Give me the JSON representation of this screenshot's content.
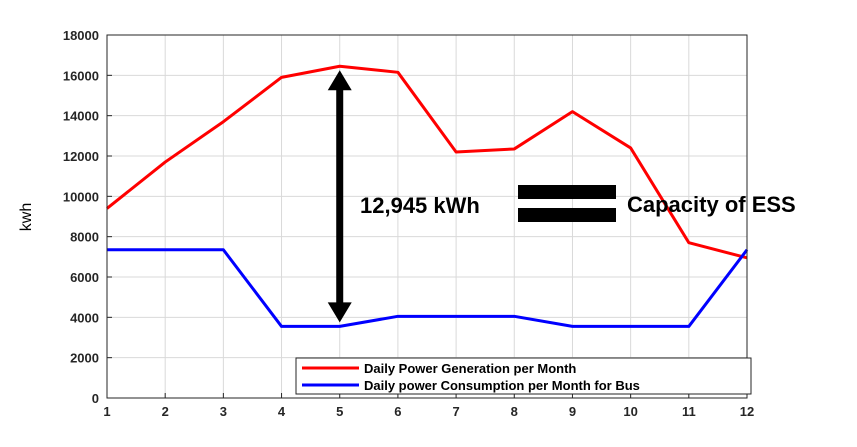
{
  "chart_data": {
    "type": "line",
    "title": "",
    "xlabel": "",
    "ylabel": "kwh",
    "x": [
      1,
      2,
      3,
      4,
      5,
      6,
      7,
      8,
      9,
      10,
      11,
      12
    ],
    "xlim": [
      1,
      12
    ],
    "ylim": [
      0,
      18000
    ],
    "xticks": [
      "1",
      "2",
      "3",
      "4",
      "5",
      "6",
      "7",
      "8",
      "9",
      "10",
      "11",
      "12"
    ],
    "yticks": [
      "0",
      "2000",
      "4000",
      "6000",
      "8000",
      "10000",
      "12000",
      "14000",
      "16000",
      "18000"
    ],
    "grid": true,
    "legend_position": "bottom-right",
    "series": [
      {
        "name": "Daily Power Generation per Month",
        "color": "#ff0000",
        "values": [
          9400,
          11700,
          13700,
          15900,
          16450,
          16150,
          12200,
          12350,
          14200,
          12400,
          7700,
          6950
        ]
      },
      {
        "name": "Daily power Consumption per Month for Bus",
        "color": "#0000ff",
        "values": [
          7350,
          7350,
          7350,
          3550,
          3550,
          4050,
          4050,
          4050,
          3550,
          3550,
          3550,
          7350
        ]
      }
    ],
    "annotations": {
      "gap_label": "12,945 kWh",
      "equals_label": "Capacity of ESS",
      "arrow_x": 5,
      "arrow_from": 3550,
      "arrow_to": 16450
    }
  }
}
